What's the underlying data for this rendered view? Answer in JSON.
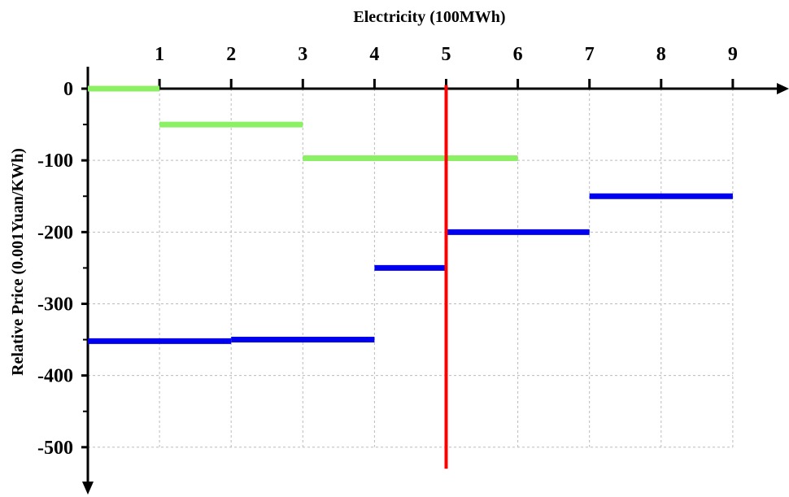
{
  "chart_data": {
    "type": "line",
    "title": "",
    "xlabel": "Electricity (100MWh)",
    "ylabel": "Relative Price (0.001Yuan/KWh)",
    "xlim": [
      0,
      9
    ],
    "ylim": [
      -500,
      0
    ],
    "x_ticks": [
      1,
      2,
      3,
      4,
      5,
      6,
      7,
      8,
      9
    ],
    "y_ticks": [
      0,
      -100,
      -200,
      -300,
      -400,
      -500
    ],
    "x_tick_labels": [
      "1",
      "2",
      "3",
      "4",
      "5",
      "6",
      "7",
      "8",
      "9"
    ],
    "y_tick_labels": [
      "0",
      "-100",
      "-200",
      "-300",
      "-400",
      "-500"
    ],
    "grid": true,
    "legend": "none",
    "series": [
      {
        "color": "#8cf065",
        "segments": [
          {
            "x": [
              0,
              1
            ],
            "y": [
              0,
              0
            ]
          },
          {
            "x": [
              1,
              3
            ],
            "y": [
              -50,
              -50
            ]
          },
          {
            "x": [
              3,
              6
            ],
            "y": [
              -97,
              -97
            ]
          }
        ]
      },
      {
        "color": "#0000ee",
        "segments": [
          {
            "x": [
              0,
              2
            ],
            "y": [
              -352,
              -352
            ]
          },
          {
            "x": [
              2,
              4
            ],
            "y": [
              -350,
              -350
            ]
          },
          {
            "x": [
              4,
              5
            ],
            "y": [
              -250,
              -250
            ]
          },
          {
            "x": [
              5,
              7
            ],
            "y": [
              -200,
              -200
            ]
          },
          {
            "x": [
              7,
              9
            ],
            "y": [
              -150,
              -150
            ]
          }
        ]
      }
    ],
    "reference_lines": [
      {
        "orientation": "vertical",
        "x": 5,
        "y_range": [
          5,
          -530
        ],
        "color": "#ff0000"
      }
    ]
  }
}
